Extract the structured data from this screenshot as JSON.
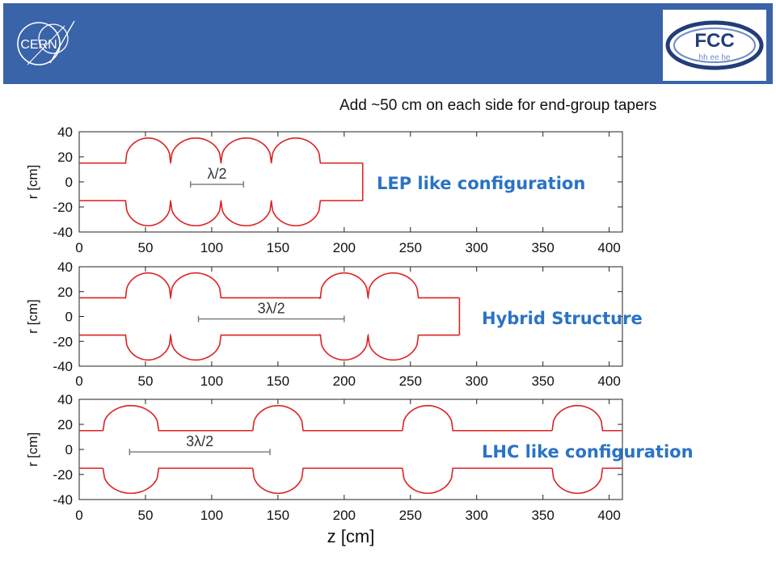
{
  "header": {
    "color": "#3a64a9",
    "left_logo": {
      "text": "CERN",
      "icon": "cern-logo-icon"
    },
    "right_logo": {
      "text": "FCC",
      "subtext": "hh ee he",
      "icon": "fcc-logo-icon"
    }
  },
  "note": "Add ~50 cm on each side for end-group tapers",
  "line_color": "#dd2222",
  "label_color": "#2a73c6",
  "chart_data": [
    {
      "type": "line",
      "label": "LEP like configuration",
      "xlim": [
        0,
        410
      ],
      "ylim": [
        -40,
        40
      ],
      "xticks": [
        0,
        50,
        100,
        150,
        200,
        250,
        300,
        350,
        400
      ],
      "yticks": [
        40,
        20,
        0,
        -20,
        -40
      ],
      "ylabel": "r [cm]",
      "xlabel": "",
      "grid": false,
      "profile": {
        "beam_pipe_radius": 15,
        "cell_radius": 35,
        "start_z": 0,
        "end_z": 214,
        "cells": [
          [
            35,
            69
          ],
          [
            69,
            107
          ],
          [
            107,
            145
          ],
          [
            145,
            182
          ]
        ]
      },
      "annotation": {
        "text": "λ/2",
        "x1": 84,
        "x2": 124,
        "y": -2
      }
    },
    {
      "type": "line",
      "label": "Hybrid Structure",
      "xlim": [
        0,
        410
      ],
      "ylim": [
        -40,
        40
      ],
      "xticks": [
        0,
        50,
        100,
        150,
        200,
        250,
        300,
        350,
        400
      ],
      "yticks": [
        40,
        20,
        0,
        -20,
        -40
      ],
      "ylabel": "r [cm]",
      "xlabel": "",
      "grid": false,
      "profile": {
        "beam_pipe_radius": 15,
        "cell_radius": 35,
        "start_z": 0,
        "end_z": 287,
        "cells": [
          [
            35,
            69
          ],
          [
            69,
            107
          ],
          [
            182,
            218
          ],
          [
            218,
            256
          ]
        ]
      },
      "annotation": {
        "text": "3λ/2",
        "x1": 90,
        "x2": 200,
        "y": -2
      }
    },
    {
      "type": "line",
      "label": "LHC like configuration",
      "xlim": [
        0,
        410
      ],
      "ylim": [
        -40,
        40
      ],
      "xticks": [
        0,
        50,
        100,
        150,
        200,
        250,
        300,
        350,
        400
      ],
      "yticks": [
        40,
        20,
        0,
        -20,
        -40
      ],
      "ylabel": "r [cm]",
      "xlabel": "z [cm]",
      "grid": false,
      "profile": {
        "beam_pipe_radius": 15,
        "cell_radius": 35,
        "start_z": 0,
        "end_z": 410,
        "cells": [
          [
            18,
            60
          ],
          [
            131,
            169
          ],
          [
            244,
            282
          ],
          [
            357,
            395
          ]
        ]
      },
      "annotation": {
        "text": "3λ/2",
        "x1": 38,
        "x2": 144,
        "y": -2
      }
    }
  ]
}
